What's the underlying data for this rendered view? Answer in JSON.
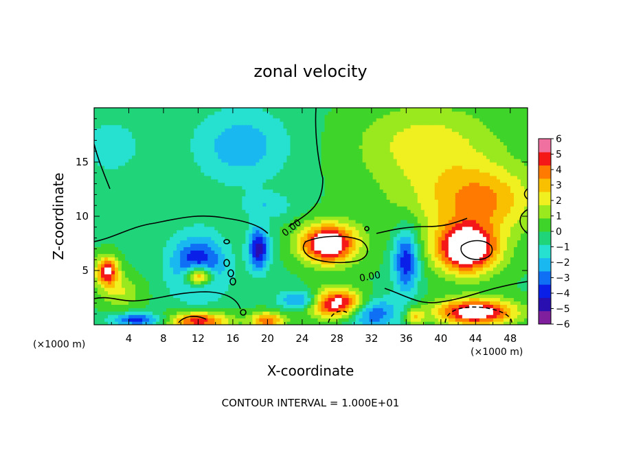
{
  "chart_data": {
    "type": "heatmap",
    "title": "zonal velocity",
    "xlabel": "X-coordinate",
    "ylabel": "Z-coordinate",
    "x_unit_label_left": "(×1000 m)",
    "x_unit_label_right": "(×1000 m)",
    "footer": "CONTOUR INTERVAL = 1.000E+01",
    "xlim": [
      0,
      50
    ],
    "ylim": [
      0,
      20
    ],
    "x_ticks": [
      4,
      8,
      12,
      16,
      20,
      24,
      28,
      32,
      36,
      40,
      44,
      48
    ],
    "y_ticks": [
      5,
      10,
      15
    ],
    "colorbar": {
      "min": -6,
      "max": 6,
      "ticks": [
        6,
        5,
        4,
        3,
        2,
        1,
        0,
        -1,
        -2,
        -3,
        -4,
        -5,
        -6
      ],
      "colors": [
        "#7f1f9e",
        "#2a0fb0",
        "#0a20e8",
        "#0f6ff5",
        "#1ab8f0",
        "#26e0d0",
        "#20d47a",
        "#3ed42a",
        "#9ae81e",
        "#f0f020",
        "#f8c000",
        "#ff7a00",
        "#f51818",
        "#f070a0"
      ]
    },
    "contour_labels": [
      "0.00",
      "0.00"
    ],
    "features": [
      {
        "kind": "background",
        "value": 0.3
      },
      {
        "kind": "blob",
        "x": 17,
        "z": 16.5,
        "rx": 5.5,
        "rz": 3.5,
        "value": -2.3
      },
      {
        "kind": "blob",
        "x": 2,
        "z": 16.5,
        "rx": 4,
        "rz": 3,
        "value": -1.2
      },
      {
        "kind": "blob",
        "x": 20,
        "z": 11,
        "rx": 3,
        "rz": 1.2,
        "value": -1.5
      },
      {
        "kind": "blob",
        "x": 38,
        "z": 17,
        "rx": 8,
        "rz": 3.5,
        "value": 1.8
      },
      {
        "kind": "blob",
        "x": 45,
        "z": 11.5,
        "rx": 6,
        "rz": 3,
        "value": 3.2
      },
      {
        "kind": "blob",
        "x": 40,
        "z": 12.5,
        "rx": 9,
        "rz": 6,
        "value": 1.4
      },
      {
        "kind": "blob",
        "x": 27,
        "z": 7.5,
        "rx": 3.2,
        "rz": 1.8,
        "value": 7.5
      },
      {
        "kind": "blob",
        "x": 43,
        "z": 7,
        "rx": 3.5,
        "rz": 2.2,
        "value": 7.5
      },
      {
        "kind": "blob",
        "x": 12,
        "z": 4.5,
        "rx": 1.6,
        "rz": 0.9,
        "value": 7
      },
      {
        "kind": "blob",
        "x": 1.5,
        "z": 5,
        "rx": 1.3,
        "rz": 1.3,
        "value": 6
      },
      {
        "kind": "blob",
        "x": 12,
        "z": 5.5,
        "rx": 3.2,
        "rz": 2.8,
        "value": -4.5
      },
      {
        "kind": "blob",
        "x": 19,
        "z": 7,
        "rx": 1.2,
        "rz": 2,
        "value": -5
      },
      {
        "kind": "blob",
        "x": 36,
        "z": 6,
        "rx": 1.5,
        "rz": 3,
        "value": -4.5
      },
      {
        "kind": "blob",
        "x": 28,
        "z": 2,
        "rx": 3.5,
        "rz": 1.3,
        "value": 7
      },
      {
        "kind": "blob",
        "x": 44,
        "z": 1.2,
        "rx": 4.5,
        "rz": 1.2,
        "value": 7
      },
      {
        "kind": "blob",
        "x": 12,
        "z": 0.4,
        "rx": 3.5,
        "rz": 0.8,
        "value": 5.5
      },
      {
        "kind": "blob",
        "x": 20,
        "z": 0.4,
        "rx": 2,
        "rz": 0.8,
        "value": 4.5
      },
      {
        "kind": "blob",
        "x": 37,
        "z": 0.8,
        "rx": 1,
        "rz": 0.8,
        "value": 3
      },
      {
        "kind": "blob",
        "x": 32,
        "z": 1.2,
        "rx": 3,
        "rz": 1.5,
        "value": -4
      },
      {
        "kind": "blob",
        "x": 24,
        "z": 2.3,
        "rx": 2.5,
        "rz": 0.9,
        "value": -4
      },
      {
        "kind": "blob",
        "x": 5,
        "z": 0.5,
        "rx": 3,
        "rz": 0.6,
        "value": -4
      },
      {
        "kind": "blob",
        "x": 3,
        "z": 3,
        "rx": 2.5,
        "rz": 1.5,
        "value": 2
      }
    ]
  }
}
